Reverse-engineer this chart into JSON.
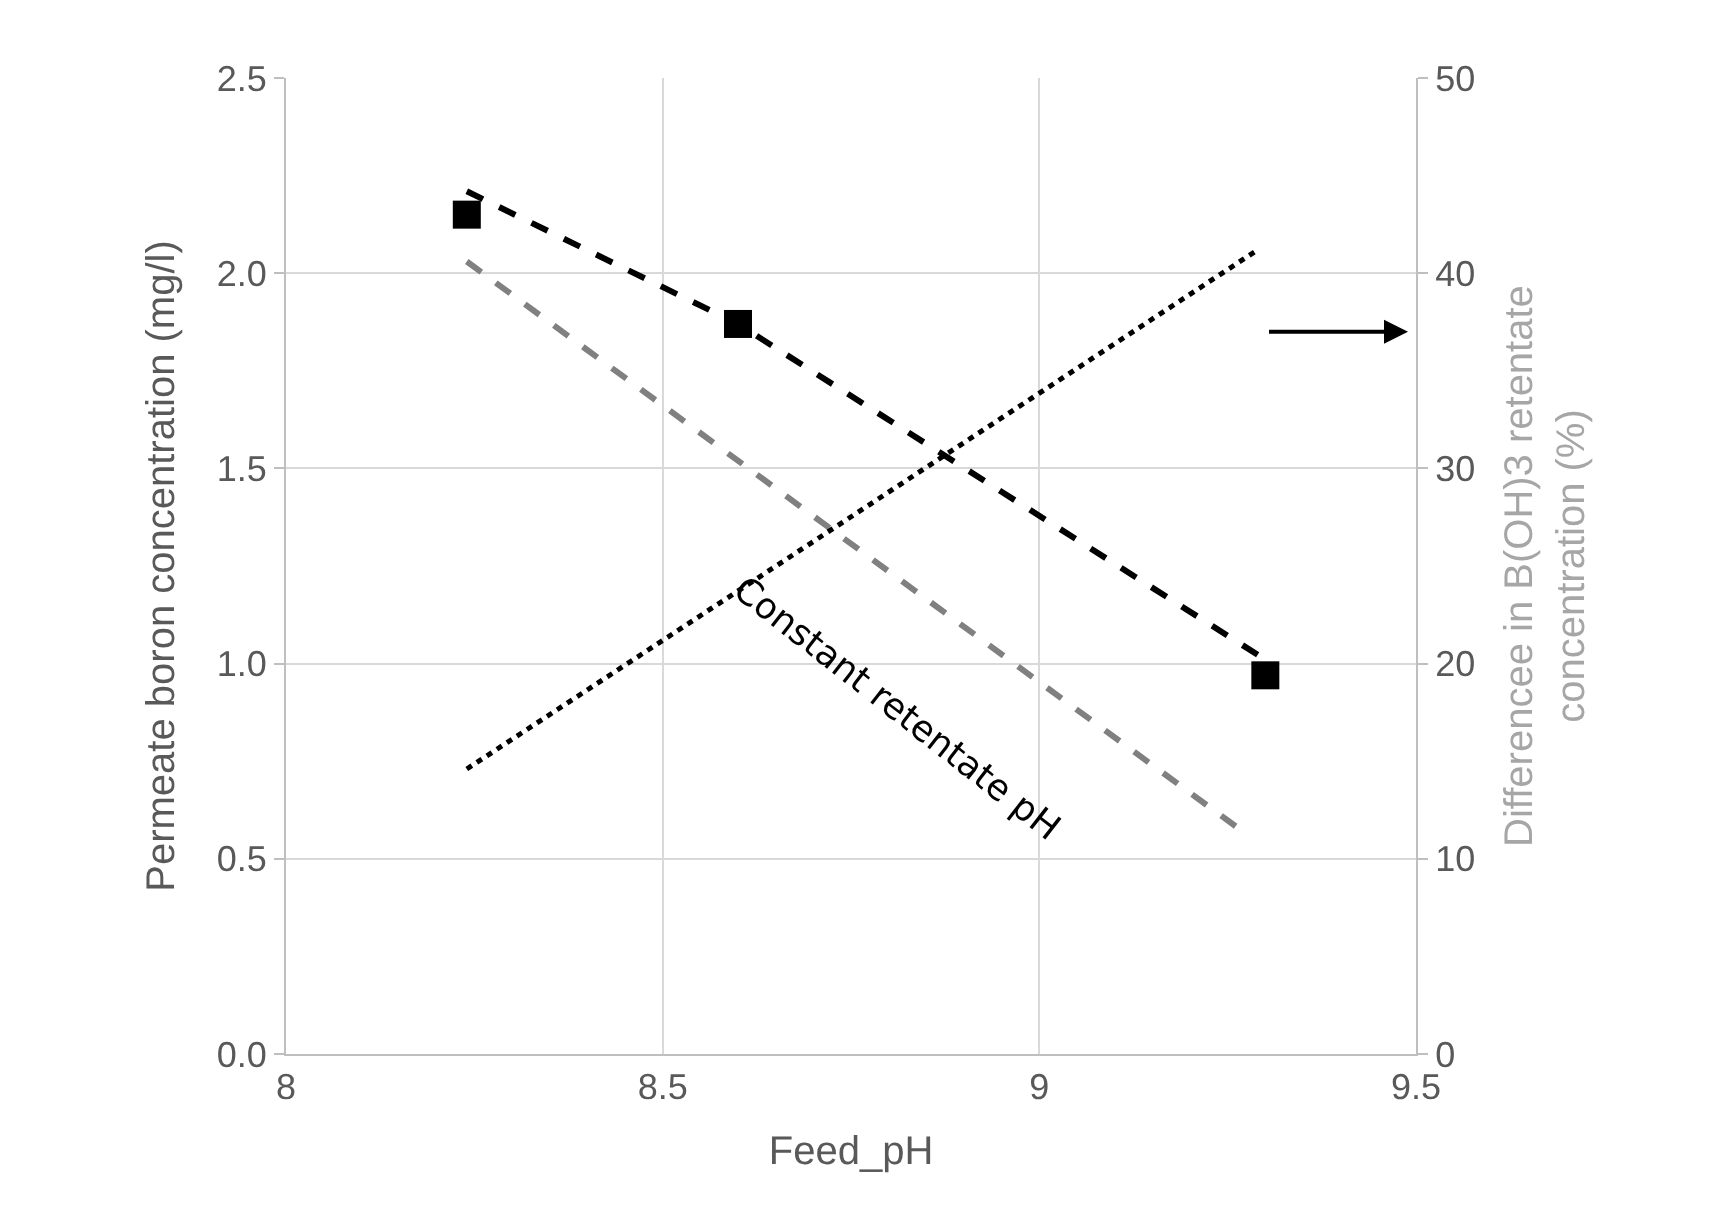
{
  "chart_data": {
    "type": "line",
    "xlabel": "Feed_pH",
    "ylabel": "Permeate boron concentration (mg/l)",
    "y2label": "Differencee in B(OH)3 retentate concentration (%)",
    "xlim": [
      8,
      9.5
    ],
    "xticks": [
      8,
      8.5,
      9,
      9.5
    ],
    "ylim": [
      0,
      2.5
    ],
    "yticks": [
      {
        "value": 0,
        "label": "0.0"
      },
      {
        "value": 0.5,
        "label": "0.5"
      },
      {
        "value": 1,
        "label": "1.0"
      },
      {
        "value": 1.5,
        "label": "1.5"
      },
      {
        "value": 2,
        "label": "2.0"
      },
      {
        "value": 2.5,
        "label": "2.5"
      }
    ],
    "y2lim": [
      0,
      50
    ],
    "y2ticks": [
      0,
      10,
      20,
      30,
      40,
      50
    ],
    "grid": true,
    "legend": false,
    "series": [
      {
        "color": "#000000",
        "x": [
          8.24,
          8.6,
          9.3
        ],
        "values": [
          2.21,
          1.87,
          1.01
        ],
        "line_style": "dashed"
      },
      {
        "type": "scatter",
        "color": "#000000",
        "x": [
          8.24,
          8.6,
          9.3
        ],
        "values": [
          2.15,
          1.87,
          0.97
        ],
        "marker": "square"
      },
      {
        "color": "#808080",
        "x": [
          8.24,
          9.27
        ],
        "values": [
          2.03,
          0.57
        ],
        "line_style": "dashed"
      },
      {
        "color": "#000000",
        "x": [
          8.24,
          9.29
        ],
        "values": [
          14.6,
          41.2
        ],
        "line_style": "dotted",
        "axis": "y2"
      }
    ],
    "annotations": [
      "Constant retentate pH"
    ]
  }
}
